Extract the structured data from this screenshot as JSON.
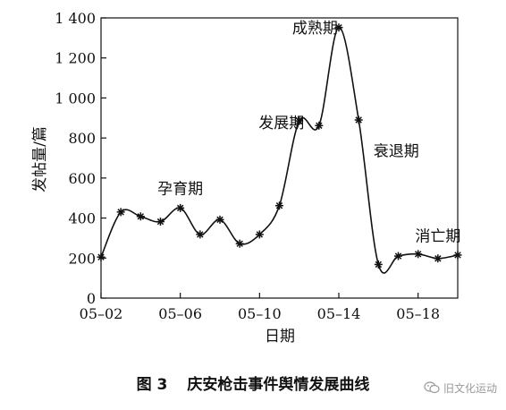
{
  "chart_data": {
    "type": "line",
    "title": "",
    "xlabel": "日期",
    "ylabel": "发帖量/篇",
    "ylim": [
      0,
      1400
    ],
    "yticks": [
      0,
      200,
      400,
      600,
      800,
      1000,
      1200,
      1400
    ],
    "ytick_labels": [
      "0",
      "200",
      "400",
      "600",
      "800",
      "1 000",
      "1 200",
      "1 400"
    ],
    "xlim": [
      2,
      20
    ],
    "xticks": [
      2,
      6,
      10,
      14,
      18
    ],
    "xtick_labels": [
      "05–02",
      "05–06",
      "05–10",
      "05–14",
      "05–18"
    ],
    "x": [
      2,
      3,
      4,
      5,
      6,
      7,
      8,
      9,
      10,
      11,
      12,
      13,
      14,
      15,
      16,
      17,
      18,
      19,
      20
    ],
    "values": [
      205,
      430,
      408,
      382,
      450,
      318,
      392,
      272,
      318,
      462,
      885,
      862,
      1352,
      890,
      168,
      210,
      220,
      198,
      215
    ],
    "grid": false,
    "marker": "asterisk",
    "color": "#111111",
    "annotations": [
      {
        "text": "孕育期",
        "x": 6,
        "y": 520
      },
      {
        "text": "发展期",
        "x": 11.1,
        "y": 850
      },
      {
        "text": "成熟期",
        "x": 12.8,
        "y": 1325
      },
      {
        "text": "衰退期",
        "x": 16.9,
        "y": 710
      },
      {
        "text": "消亡期",
        "x": 19,
        "y": 285
      }
    ]
  },
  "caption": {
    "number": "图 3",
    "text": "庆安枪击事件舆情发展曲线"
  },
  "watermark": {
    "text": "旧文化运动",
    "icon": "wechat-icon"
  }
}
